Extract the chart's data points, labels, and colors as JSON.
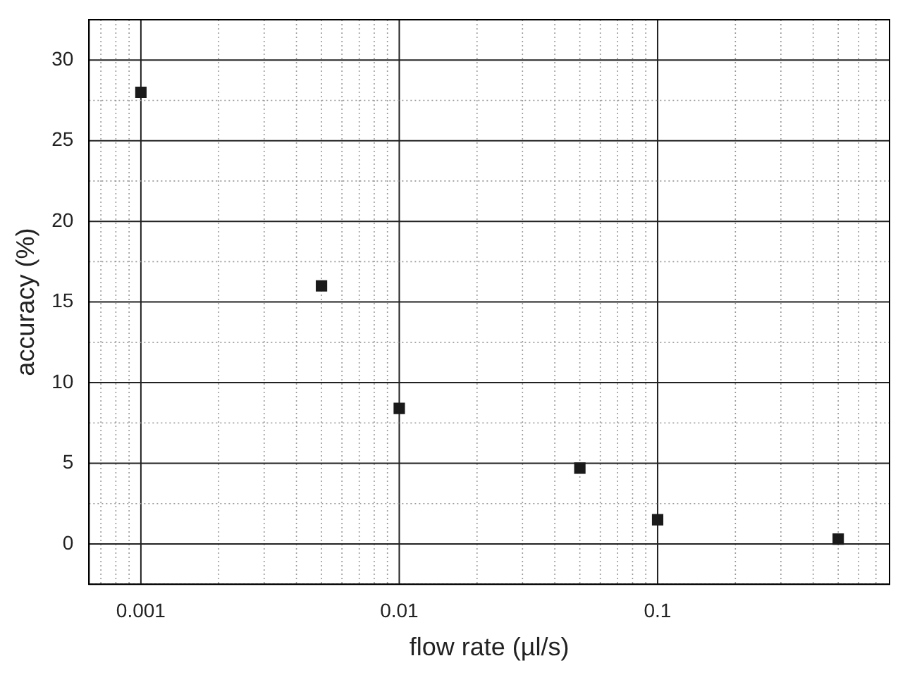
{
  "chart_data": {
    "type": "scatter",
    "xlabel": "flow rate (µl/s)",
    "ylabel": "accuracy (%)",
    "x": [
      0.001,
      0.005,
      0.01,
      0.05,
      0.1,
      0.5
    ],
    "series": [
      {
        "color": "#1a1a1a",
        "values": [
          28,
          16,
          8.4,
          4.7,
          1.5,
          0.3
        ]
      }
    ],
    "log": "x",
    "marker": "square",
    "grid": true,
    "legend": false,
    "xlim": [
      0.00063,
      0.79
    ],
    "xticks": [
      {
        "value": 0.0007,
        "label": null
      },
      {
        "value": 0.0008,
        "label": null
      },
      {
        "value": 0.0009,
        "label": null
      },
      0.001,
      {
        "value": 0.002,
        "label": null
      },
      {
        "value": 0.003,
        "label": null
      },
      {
        "value": 0.004,
        "label": null
      },
      {
        "value": 0.005,
        "label": null
      },
      {
        "value": 0.006,
        "label": null
      },
      {
        "value": 0.007,
        "label": null
      },
      {
        "value": 0.008,
        "label": null
      },
      {
        "value": 0.009,
        "label": null
      },
      0.01,
      {
        "value": 0.02,
        "label": null
      },
      {
        "value": 0.03,
        "label": null
      },
      {
        "value": 0.04,
        "label": null
      },
      {
        "value": 0.05,
        "label": null
      },
      {
        "value": 0.06,
        "label": null
      },
      {
        "value": 0.07,
        "label": null
      },
      {
        "value": 0.08,
        "label": null
      },
      {
        "value": 0.09,
        "label": null
      },
      0.1,
      {
        "value": 0.2,
        "label": null
      },
      {
        "value": 0.3,
        "label": null
      },
      {
        "value": 0.4,
        "label": null
      },
      {
        "value": 0.5,
        "label": null
      },
      {
        "value": 0.6,
        "label": null
      },
      {
        "value": 0.7,
        "label": null
      }
    ],
    "ylim": [
      -2.5,
      32.5
    ],
    "yticks": [
      {
        "value": -2.5,
        "label": null
      },
      0,
      {
        "value": 2.5,
        "label": null
      },
      5,
      {
        "value": 7.5,
        "label": null
      },
      10,
      {
        "value": 12.5,
        "label": null
      },
      15,
      {
        "value": 17.5,
        "label": null
      },
      20,
      {
        "value": 22.5,
        "label": null
      },
      25,
      {
        "value": 27.5,
        "label": null
      },
      30
    ]
  }
}
